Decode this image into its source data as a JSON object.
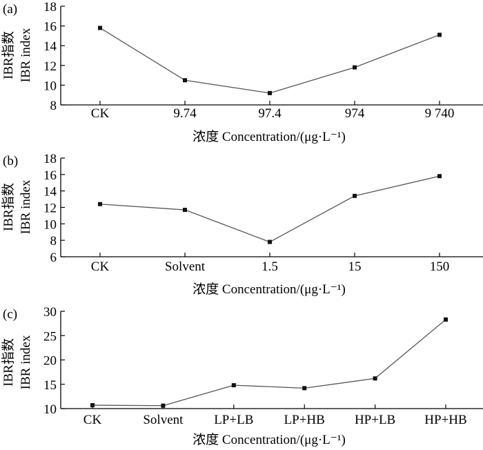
{
  "chart_data": [
    {
      "type": "line",
      "panel": "(a)",
      "categories": [
        "CK",
        "9.74",
        "97.4",
        "974",
        "9 740"
      ],
      "values": [
        15.8,
        10.5,
        9.2,
        11.8,
        15.1
      ],
      "ylim": [
        8,
        18
      ],
      "yticks": [
        "8",
        "10",
        "12",
        "14",
        "16",
        "18"
      ],
      "ylabel_cn": "IBR指数",
      "ylabel_en": "IBR index",
      "xlabel": "浓度 Concentration/(μg·L⁻¹)"
    },
    {
      "type": "line",
      "panel": "(b)",
      "categories": [
        "CK",
        "Solvent",
        "1.5",
        "15",
        "150"
      ],
      "values": [
        12.4,
        11.7,
        7.8,
        13.4,
        15.8
      ],
      "ylim": [
        6,
        18
      ],
      "yticks": [
        "6",
        "8",
        "10",
        "12",
        "14",
        "16",
        "18"
      ],
      "ylabel_cn": "IBR指数",
      "ylabel_en": "IBR index",
      "xlabel": "浓度 Concentration/(μg·L⁻¹)"
    },
    {
      "type": "line",
      "panel": "(c)",
      "categories": [
        "CK",
        "Solvent",
        "LP+LB",
        "LP+HB",
        "HP+LB",
        "HP+HB"
      ],
      "values": [
        10.7,
        10.6,
        14.8,
        14.2,
        16.2,
        28.3
      ],
      "ylim": [
        10,
        30
      ],
      "yticks": [
        "10",
        "15",
        "20",
        "25",
        "30"
      ],
      "ylabel_cn": "IBR指数",
      "ylabel_en": "IBR index",
      "xlabel": "浓度 Concentration/(μg·L⁻¹)"
    }
  ]
}
